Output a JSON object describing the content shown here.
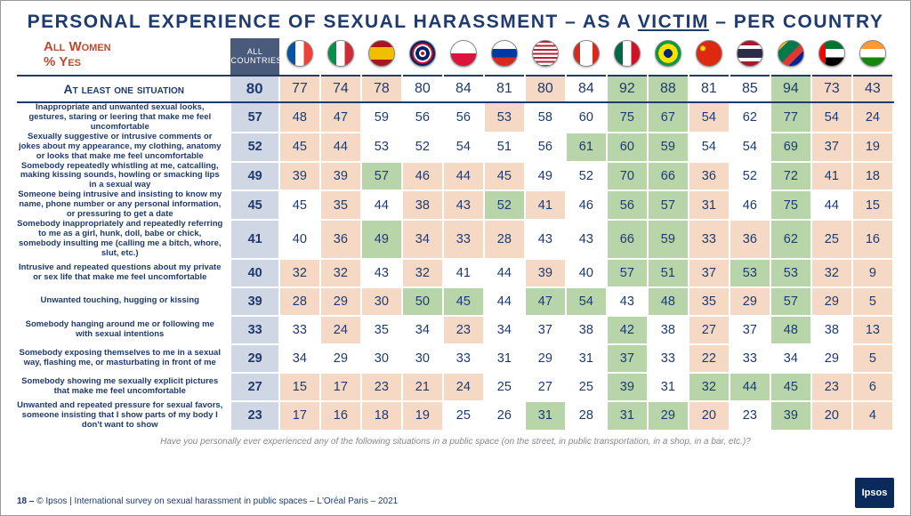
{
  "title_a": "PERSONAL EXPERIENCE OF SEXUAL HARASSMENT – AS A ",
  "title_vic": "VICTIM",
  "title_b": " – PER COUNTRY",
  "sub1": "All Women",
  "sub2": "% Yes",
  "allcountries_hdr": "ALL COUNTRIES",
  "countries": [
    {
      "code": "fr",
      "flag": "linear-gradient(90deg,#0055a4 33%,#fff 33% 66%,#ef4135 66%)"
    },
    {
      "code": "it",
      "flag": "linear-gradient(90deg,#009246 33%,#fff 33% 66%,#ce2b37 66%)"
    },
    {
      "code": "es",
      "flag": "linear-gradient(180deg,#aa151b 25%,#f1bf00 25% 75%,#aa151b 75%)"
    },
    {
      "code": "uk",
      "flag": "radial-gradient(circle,#c8102e 10%,#fff 10% 20%,#012169 20% 40%,#fff 40% 50%,#c8102e 50% 60%,#012169 60%)"
    },
    {
      "code": "pl",
      "flag": "linear-gradient(180deg,#fff 50%,#dc143c 50%)"
    },
    {
      "code": "ru",
      "flag": "linear-gradient(180deg,#fff 33%,#0039a6 33% 66%,#d52b1e 66%)"
    },
    {
      "code": "us",
      "flag": "repeating-linear-gradient(180deg,#b22234 0 8%,#fff 8% 16%),linear-gradient(90deg,#3c3b6e 45%,transparent 45%)"
    },
    {
      "code": "ca",
      "flag": "linear-gradient(90deg,#d52b1e 25%,#fff 25% 75%,#d52b1e 75%)"
    },
    {
      "code": "mx",
      "flag": "linear-gradient(90deg,#006847 33%,#fff 33% 66%,#ce1126 66%)"
    },
    {
      "code": "br",
      "flag": "radial-gradient(circle,#002776 25%,#fedf00 25% 55%,#009b3a 55%)"
    },
    {
      "code": "cn",
      "flag": "radial-gradient(circle at 25% 30%,#ffde00 8%,#de2910 12%)"
    },
    {
      "code": "th",
      "flag": "linear-gradient(180deg,#a51931 17%,#fff 17% 33%,#2d2a4a 33% 67%,#fff 67% 83%,#a51931 83%)"
    },
    {
      "code": "za",
      "flag": "linear-gradient(135deg,#ffb612 20%,#007a4d 20% 50%,#de3831 50% 70%,#002395 70%)"
    },
    {
      "code": "ae",
      "flag": "linear-gradient(90deg,#ff0000 25%,transparent 25%),linear-gradient(180deg,#00732f 33%,#fff 33% 66%,#000 66%)"
    },
    {
      "code": "in",
      "flag": "linear-gradient(180deg,#ff9933 33%,#fff 33% 66%,#138808 66%)"
    }
  ],
  "atleast_label": "At least one situation",
  "atleast_all": 80,
  "atleast_vals": [
    {
      "v": 77,
      "c": "low"
    },
    {
      "v": 74,
      "c": "low"
    },
    {
      "v": 78,
      "c": "low"
    },
    {
      "v": 80,
      "c": "mid"
    },
    {
      "v": 84,
      "c": "mid"
    },
    {
      "v": 81,
      "c": "mid"
    },
    {
      "v": 80,
      "c": "low"
    },
    {
      "v": 84,
      "c": "mid"
    },
    {
      "v": 92,
      "c": "high"
    },
    {
      "v": 88,
      "c": "high"
    },
    {
      "v": 81,
      "c": "mid"
    },
    {
      "v": 85,
      "c": "mid"
    },
    {
      "v": 94,
      "c": "high"
    },
    {
      "v": 73,
      "c": "low"
    },
    {
      "v": 43,
      "c": "low"
    }
  ],
  "rows": [
    {
      "label": "Inappropriate and unwanted sexual looks, gestures, staring or leering that make me feel uncomfortable",
      "all": 57,
      "vals": [
        {
          "v": 48,
          "c": "low"
        },
        {
          "v": 47,
          "c": "low"
        },
        {
          "v": 59,
          "c": "mid"
        },
        {
          "v": 56,
          "c": "mid"
        },
        {
          "v": 56,
          "c": "mid"
        },
        {
          "v": 53,
          "c": "low"
        },
        {
          "v": 58,
          "c": "mid"
        },
        {
          "v": 60,
          "c": "mid"
        },
        {
          "v": 75,
          "c": "high"
        },
        {
          "v": 67,
          "c": "high"
        },
        {
          "v": 54,
          "c": "low"
        },
        {
          "v": 62,
          "c": "mid"
        },
        {
          "v": 77,
          "c": "high"
        },
        {
          "v": 54,
          "c": "low"
        },
        {
          "v": 24,
          "c": "low"
        }
      ]
    },
    {
      "label": "Sexually suggestive or intrusive comments or jokes about my appearance, my clothing, anatomy or looks that make me feel uncomfortable",
      "all": 52,
      "vals": [
        {
          "v": 45,
          "c": "low"
        },
        {
          "v": 44,
          "c": "low"
        },
        {
          "v": 53,
          "c": "mid"
        },
        {
          "v": 52,
          "c": "mid"
        },
        {
          "v": 54,
          "c": "mid"
        },
        {
          "v": 51,
          "c": "mid"
        },
        {
          "v": 56,
          "c": "mid"
        },
        {
          "v": 61,
          "c": "high"
        },
        {
          "v": 60,
          "c": "high"
        },
        {
          "v": 59,
          "c": "high"
        },
        {
          "v": 54,
          "c": "mid"
        },
        {
          "v": 54,
          "c": "mid"
        },
        {
          "v": 69,
          "c": "high"
        },
        {
          "v": 37,
          "c": "low"
        },
        {
          "v": 19,
          "c": "low"
        }
      ]
    },
    {
      "label": "Somebody repeatedly whistling at me, catcalling, making kissing sounds, howling or smacking lips in a sexual way",
      "all": 49,
      "vals": [
        {
          "v": 39,
          "c": "low"
        },
        {
          "v": 39,
          "c": "low"
        },
        {
          "v": 57,
          "c": "high"
        },
        {
          "v": 46,
          "c": "low"
        },
        {
          "v": 44,
          "c": "low"
        },
        {
          "v": 45,
          "c": "low"
        },
        {
          "v": 49,
          "c": "mid"
        },
        {
          "v": 52,
          "c": "mid"
        },
        {
          "v": 70,
          "c": "high"
        },
        {
          "v": 66,
          "c": "high"
        },
        {
          "v": 36,
          "c": "low"
        },
        {
          "v": 52,
          "c": "mid"
        },
        {
          "v": 72,
          "c": "high"
        },
        {
          "v": 41,
          "c": "low"
        },
        {
          "v": 18,
          "c": "low"
        }
      ]
    },
    {
      "label": "Someone being intrusive and insisting to know my name, phone number or any personal information, or pressuring to get a date",
      "all": 45,
      "vals": [
        {
          "v": 45,
          "c": "mid"
        },
        {
          "v": 35,
          "c": "low"
        },
        {
          "v": 44,
          "c": "mid"
        },
        {
          "v": 38,
          "c": "low"
        },
        {
          "v": 43,
          "c": "low"
        },
        {
          "v": 52,
          "c": "high"
        },
        {
          "v": 41,
          "c": "low"
        },
        {
          "v": 46,
          "c": "mid"
        },
        {
          "v": 56,
          "c": "high"
        },
        {
          "v": 57,
          "c": "high"
        },
        {
          "v": 31,
          "c": "low"
        },
        {
          "v": 46,
          "c": "mid"
        },
        {
          "v": 75,
          "c": "high"
        },
        {
          "v": 44,
          "c": "mid"
        },
        {
          "v": 15,
          "c": "low"
        }
      ]
    },
    {
      "label": "Somebody inappropriately and repeatedly referring to me as a girl, hunk, doll, babe or chick, somebody insulting me (calling me a bitch, whore, slut, etc.)",
      "all": 41,
      "vals": [
        {
          "v": 40,
          "c": "mid"
        },
        {
          "v": 36,
          "c": "low"
        },
        {
          "v": 49,
          "c": "high"
        },
        {
          "v": 34,
          "c": "low"
        },
        {
          "v": 33,
          "c": "low"
        },
        {
          "v": 28,
          "c": "low"
        },
        {
          "v": 43,
          "c": "mid"
        },
        {
          "v": 43,
          "c": "mid"
        },
        {
          "v": 66,
          "c": "high"
        },
        {
          "v": 59,
          "c": "high"
        },
        {
          "v": 33,
          "c": "low"
        },
        {
          "v": 36,
          "c": "low"
        },
        {
          "v": 62,
          "c": "high"
        },
        {
          "v": 25,
          "c": "low"
        },
        {
          "v": 16,
          "c": "low"
        }
      ]
    },
    {
      "label": "Intrusive and repeated questions about my private or sex life that make me feel uncomfortable",
      "all": 40,
      "vals": [
        {
          "v": 32,
          "c": "low"
        },
        {
          "v": 32,
          "c": "low"
        },
        {
          "v": 43,
          "c": "mid"
        },
        {
          "v": 32,
          "c": "low"
        },
        {
          "v": 41,
          "c": "mid"
        },
        {
          "v": 44,
          "c": "mid"
        },
        {
          "v": 39,
          "c": "low"
        },
        {
          "v": 40,
          "c": "mid"
        },
        {
          "v": 57,
          "c": "high"
        },
        {
          "v": 51,
          "c": "high"
        },
        {
          "v": 37,
          "c": "low"
        },
        {
          "v": 53,
          "c": "high"
        },
        {
          "v": 53,
          "c": "high"
        },
        {
          "v": 32,
          "c": "low"
        },
        {
          "v": 9,
          "c": "low"
        }
      ]
    },
    {
      "label": "Unwanted touching, hugging or kissing",
      "all": 39,
      "vals": [
        {
          "v": 28,
          "c": "low"
        },
        {
          "v": 29,
          "c": "low"
        },
        {
          "v": 30,
          "c": "low"
        },
        {
          "v": 50,
          "c": "high"
        },
        {
          "v": 45,
          "c": "high"
        },
        {
          "v": 44,
          "c": "mid"
        },
        {
          "v": 47,
          "c": "high"
        },
        {
          "v": 54,
          "c": "high"
        },
        {
          "v": 43,
          "c": "mid"
        },
        {
          "v": 48,
          "c": "high"
        },
        {
          "v": 35,
          "c": "low"
        },
        {
          "v": 29,
          "c": "low"
        },
        {
          "v": 57,
          "c": "high"
        },
        {
          "v": 29,
          "c": "low"
        },
        {
          "v": 5,
          "c": "low"
        }
      ]
    },
    {
      "label": "Somebody hanging around me or following me with sexual intentions",
      "all": 33,
      "vals": [
        {
          "v": 33,
          "c": "mid"
        },
        {
          "v": 24,
          "c": "low"
        },
        {
          "v": 35,
          "c": "mid"
        },
        {
          "v": 34,
          "c": "mid"
        },
        {
          "v": 23,
          "c": "low"
        },
        {
          "v": 34,
          "c": "mid"
        },
        {
          "v": 37,
          "c": "mid"
        },
        {
          "v": 38,
          "c": "mid"
        },
        {
          "v": 42,
          "c": "high"
        },
        {
          "v": 38,
          "c": "mid"
        },
        {
          "v": 27,
          "c": "low"
        },
        {
          "v": 37,
          "c": "mid"
        },
        {
          "v": 48,
          "c": "high"
        },
        {
          "v": 38,
          "c": "mid"
        },
        {
          "v": 13,
          "c": "low"
        }
      ]
    },
    {
      "label": "Somebody exposing themselves to me in a sexual way, flashing me, or masturbating in front of me",
      "all": 29,
      "vals": [
        {
          "v": 34,
          "c": "mid"
        },
        {
          "v": 29,
          "c": "mid"
        },
        {
          "v": 30,
          "c": "mid"
        },
        {
          "v": 30,
          "c": "mid"
        },
        {
          "v": 33,
          "c": "mid"
        },
        {
          "v": 31,
          "c": "mid"
        },
        {
          "v": 29,
          "c": "mid"
        },
        {
          "v": 31,
          "c": "mid"
        },
        {
          "v": 37,
          "c": "high"
        },
        {
          "v": 33,
          "c": "mid"
        },
        {
          "v": 22,
          "c": "low"
        },
        {
          "v": 33,
          "c": "mid"
        },
        {
          "v": 34,
          "c": "mid"
        },
        {
          "v": 29,
          "c": "mid"
        },
        {
          "v": 5,
          "c": "low"
        }
      ]
    },
    {
      "label": "Somebody showing me sexually explicit pictures that make me feel uncomfortable",
      "all": 27,
      "vals": [
        {
          "v": 15,
          "c": "low"
        },
        {
          "v": 17,
          "c": "low"
        },
        {
          "v": 23,
          "c": "low"
        },
        {
          "v": 21,
          "c": "low"
        },
        {
          "v": 24,
          "c": "low"
        },
        {
          "v": 25,
          "c": "mid"
        },
        {
          "v": 27,
          "c": "mid"
        },
        {
          "v": 25,
          "c": "mid"
        },
        {
          "v": 39,
          "c": "high"
        },
        {
          "v": 31,
          "c": "mid"
        },
        {
          "v": 32,
          "c": "high"
        },
        {
          "v": 44,
          "c": "high"
        },
        {
          "v": 45,
          "c": "high"
        },
        {
          "v": 23,
          "c": "low"
        },
        {
          "v": 6,
          "c": "low"
        }
      ]
    },
    {
      "label": "Unwanted and repeated pressure for sexual favors, someone insisting that I show parts of my body I don't want to show",
      "all": 23,
      "vals": [
        {
          "v": 17,
          "c": "low"
        },
        {
          "v": 16,
          "c": "low"
        },
        {
          "v": 18,
          "c": "low"
        },
        {
          "v": 19,
          "c": "low"
        },
        {
          "v": 25,
          "c": "mid"
        },
        {
          "v": 26,
          "c": "mid"
        },
        {
          "v": 31,
          "c": "high"
        },
        {
          "v": 28,
          "c": "mid"
        },
        {
          "v": 31,
          "c": "high"
        },
        {
          "v": 29,
          "c": "high"
        },
        {
          "v": 20,
          "c": "low"
        },
        {
          "v": 23,
          "c": "mid"
        },
        {
          "v": 39,
          "c": "high"
        },
        {
          "v": 20,
          "c": "low"
        },
        {
          "v": 4,
          "c": "low"
        }
      ]
    }
  ],
  "footq": "Have you personally ever experienced any of the following situations in a public space (on the street, in public transportation, in a shop, in a bar, etc.)?",
  "footer_page": "18 –",
  "footer_txt": "© Ipsos | International survey on sexual harassment in public spaces – L'Oréal Paris – 2021",
  "logo_txt": "Ipsos"
}
